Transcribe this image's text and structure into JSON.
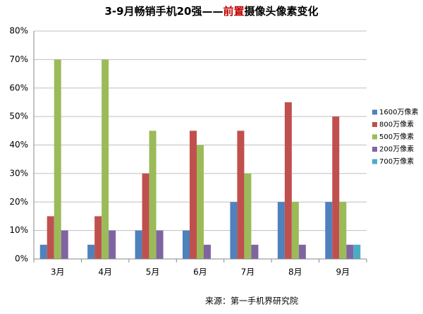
{
  "chart_data": {
    "type": "bar",
    "title": [
      "3-9月畅销手机20强——",
      "前置",
      "摄像头像素变化"
    ],
    "title_colors": [
      "#000000",
      "#c00000",
      "#000000"
    ],
    "source": "来源：第一手机界研究院",
    "categories": [
      "3月",
      "4月",
      "5月",
      "6月",
      "7月",
      "8月",
      "9月"
    ],
    "series": [
      {
        "name": "1600万像素",
        "color": "#4f81bd",
        "values": [
          5,
          5,
          10,
          10,
          20,
          20,
          20
        ]
      },
      {
        "name": "800万像素",
        "color": "#c0504d",
        "values": [
          15,
          15,
          30,
          45,
          45,
          55,
          50
        ]
      },
      {
        "name": "500万像素",
        "color": "#9bbb59",
        "values": [
          70,
          70,
          45,
          40,
          30,
          20,
          20
        ]
      },
      {
        "name": "200万像素",
        "color": "#8064a2",
        "values": [
          10,
          10,
          10,
          5,
          5,
          5,
          5
        ]
      },
      {
        "name": "700万像素",
        "color": "#4bacc6",
        "values": [
          0,
          0,
          0,
          0,
          0,
          0,
          5
        ]
      }
    ],
    "ylim": [
      0,
      80
    ],
    "yticks": [
      {
        "value": 0,
        "label": "0%"
      },
      {
        "value": 10,
        "label": "10%"
      },
      {
        "value": 20,
        "label": "20%"
      },
      {
        "value": 30,
        "label": "30%"
      },
      {
        "value": 40,
        "label": "40%"
      },
      {
        "value": 50,
        "label": "50%"
      },
      {
        "value": 60,
        "label": "60%"
      },
      {
        "value": 70,
        "label": "70%"
      },
      {
        "value": 80,
        "label": "80%"
      }
    ],
    "grid": true
  }
}
